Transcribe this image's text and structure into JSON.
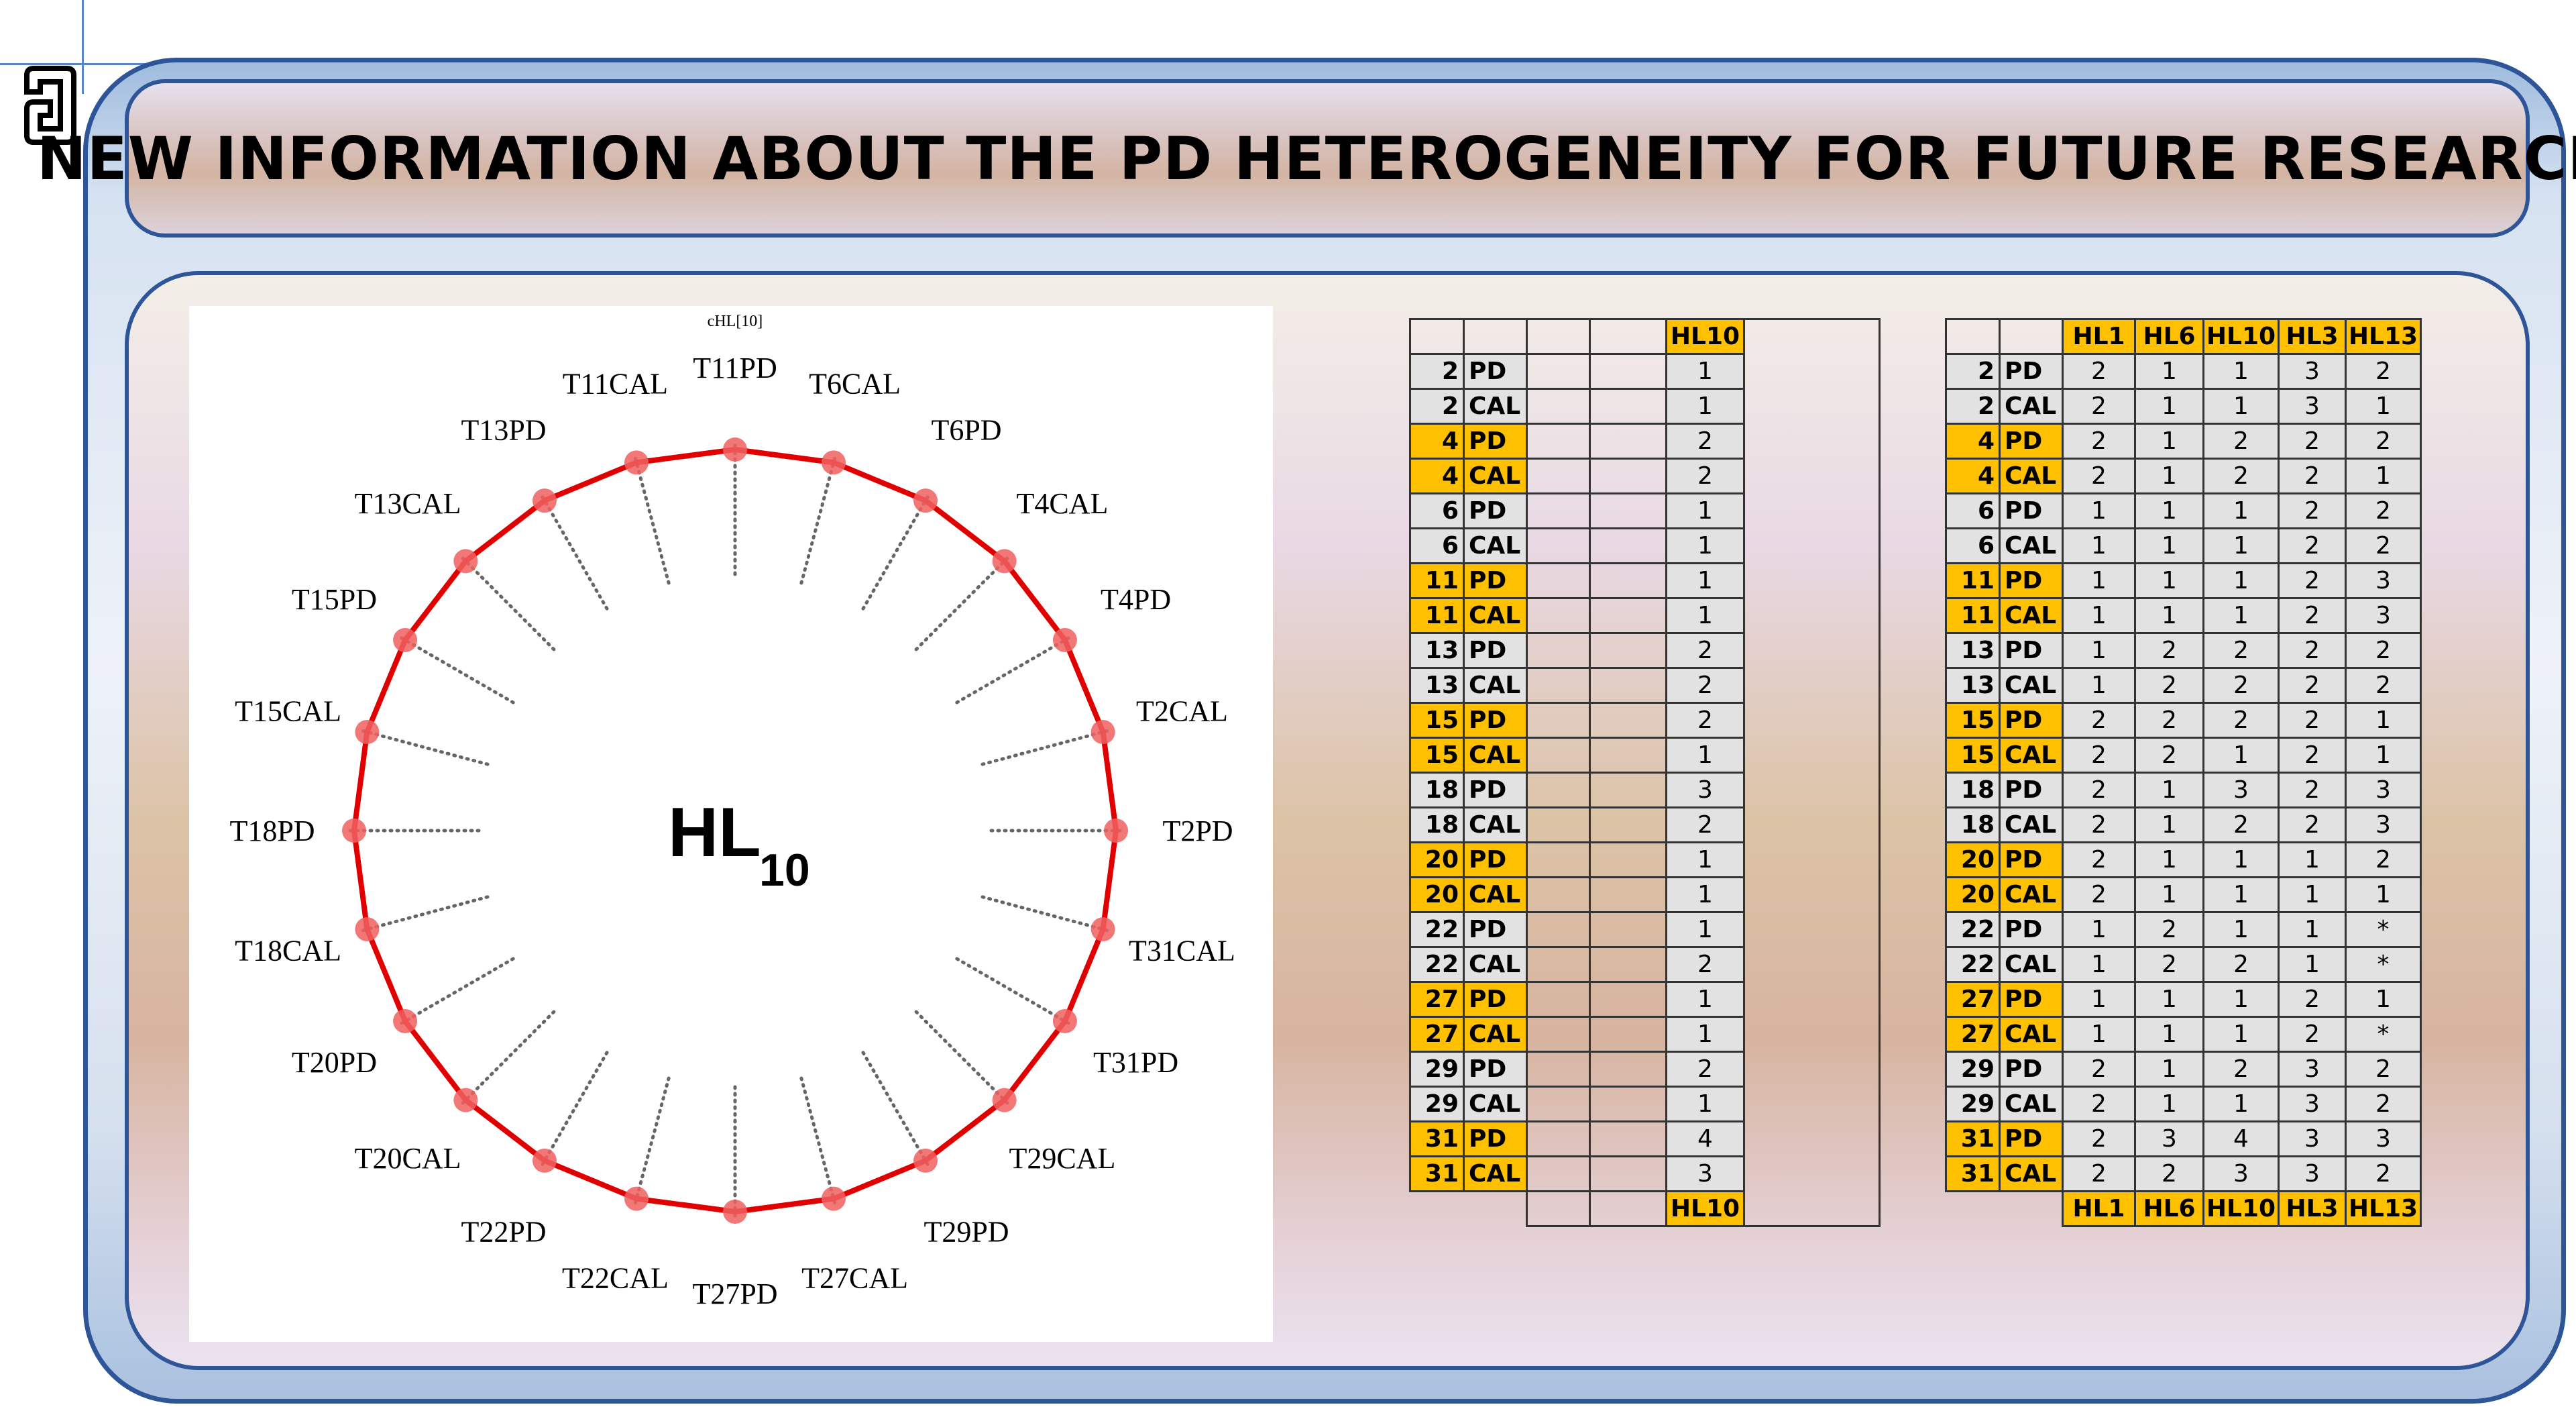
{
  "title": "NEW INFORMATION ABOUT THE PD HETEROGENEITY FOR FUTURE RESEARCH",
  "diagram": {
    "small_label": "cHL[10]",
    "center_label_main": "HL",
    "center_label_sub": "10",
    "line_color": "#e00000",
    "marker_color": "#f06060",
    "axes": [
      {
        "label": "T11PD",
        "value": 1
      },
      {
        "label": "T6CAL",
        "value": 1
      },
      {
        "label": "T6PD",
        "value": 1
      },
      {
        "label": "T4CAL",
        "value": 2
      },
      {
        "label": "T4PD",
        "value": 2
      },
      {
        "label": "T2CAL",
        "value": 1
      },
      {
        "label": "T2PD",
        "value": 1
      },
      {
        "label": "T31CAL",
        "value": 3
      },
      {
        "label": "T31PD",
        "value": 4
      },
      {
        "label": "T29CAL",
        "value": 1
      },
      {
        "label": "T29PD",
        "value": 2
      },
      {
        "label": "T27CAL",
        "value": 1
      },
      {
        "label": "T27PD",
        "value": 1
      },
      {
        "label": "T22CAL",
        "value": 2
      },
      {
        "label": "T22PD",
        "value": 1
      },
      {
        "label": "T20CAL",
        "value": 1
      },
      {
        "label": "T20PD",
        "value": 1
      },
      {
        "label": "T18CAL",
        "value": 2
      },
      {
        "label": "T18PD",
        "value": 3
      },
      {
        "label": "T15CAL",
        "value": 1
      },
      {
        "label": "T15PD",
        "value": 2
      },
      {
        "label": "T13CAL",
        "value": 2
      },
      {
        "label": "T13PD",
        "value": 2
      },
      {
        "label": "T11CAL",
        "value": 1
      }
    ]
  },
  "table1": {
    "header": "HL10",
    "footer": "HL10",
    "rows": [
      {
        "num": "2",
        "grp": "PD",
        "val": "1"
      },
      {
        "num": "2",
        "grp": "CAL",
        "val": "1"
      },
      {
        "num": "4",
        "grp": "PD",
        "val": "2"
      },
      {
        "num": "4",
        "grp": "CAL",
        "val": "2"
      },
      {
        "num": "6",
        "grp": "PD",
        "val": "1"
      },
      {
        "num": "6",
        "grp": "CAL",
        "val": "1"
      },
      {
        "num": "11",
        "grp": "PD",
        "val": "1"
      },
      {
        "num": "11",
        "grp": "CAL",
        "val": "1"
      },
      {
        "num": "13",
        "grp": "PD",
        "val": "2"
      },
      {
        "num": "13",
        "grp": "CAL",
        "val": "2"
      },
      {
        "num": "15",
        "grp": "PD",
        "val": "2"
      },
      {
        "num": "15",
        "grp": "CAL",
        "val": "1"
      },
      {
        "num": "18",
        "grp": "PD",
        "val": "3"
      },
      {
        "num": "18",
        "grp": "CAL",
        "val": "2"
      },
      {
        "num": "20",
        "grp": "PD",
        "val": "1"
      },
      {
        "num": "20",
        "grp": "CAL",
        "val": "1"
      },
      {
        "num": "22",
        "grp": "PD",
        "val": "1"
      },
      {
        "num": "22",
        "grp": "CAL",
        "val": "2"
      },
      {
        "num": "27",
        "grp": "PD",
        "val": "1"
      },
      {
        "num": "27",
        "grp": "CAL",
        "val": "1"
      },
      {
        "num": "29",
        "grp": "PD",
        "val": "2"
      },
      {
        "num": "29",
        "grp": "CAL",
        "val": "1"
      },
      {
        "num": "31",
        "grp": "PD",
        "val": "4"
      },
      {
        "num": "31",
        "grp": "CAL",
        "val": "3"
      }
    ]
  },
  "table2": {
    "headers": [
      "HL1",
      "HL6",
      "HL10",
      "HL3",
      "HL13"
    ],
    "footers": [
      "HL1",
      "HL6",
      "HL10",
      "HL3",
      "HL13"
    ],
    "rows": [
      {
        "num": "2",
        "grp": "PD",
        "vals": [
          "2",
          "1",
          "1",
          "3",
          "2"
        ]
      },
      {
        "num": "2",
        "grp": "CAL",
        "vals": [
          "2",
          "1",
          "1",
          "3",
          "1"
        ]
      },
      {
        "num": "4",
        "grp": "PD",
        "vals": [
          "2",
          "1",
          "2",
          "2",
          "2"
        ]
      },
      {
        "num": "4",
        "grp": "CAL",
        "vals": [
          "2",
          "1",
          "2",
          "2",
          "1"
        ]
      },
      {
        "num": "6",
        "grp": "PD",
        "vals": [
          "1",
          "1",
          "1",
          "2",
          "2"
        ]
      },
      {
        "num": "6",
        "grp": "CAL",
        "vals": [
          "1",
          "1",
          "1",
          "2",
          "2"
        ]
      },
      {
        "num": "11",
        "grp": "PD",
        "vals": [
          "1",
          "1",
          "1",
          "2",
          "3"
        ]
      },
      {
        "num": "11",
        "grp": "CAL",
        "vals": [
          "1",
          "1",
          "1",
          "2",
          "3"
        ]
      },
      {
        "num": "13",
        "grp": "PD",
        "vals": [
          "1",
          "2",
          "2",
          "2",
          "2"
        ]
      },
      {
        "num": "13",
        "grp": "CAL",
        "vals": [
          "1",
          "2",
          "2",
          "2",
          "2"
        ]
      },
      {
        "num": "15",
        "grp": "PD",
        "vals": [
          "2",
          "2",
          "2",
          "2",
          "1"
        ]
      },
      {
        "num": "15",
        "grp": "CAL",
        "vals": [
          "2",
          "2",
          "1",
          "2",
          "1"
        ]
      },
      {
        "num": "18",
        "grp": "PD",
        "vals": [
          "2",
          "1",
          "3",
          "2",
          "3"
        ]
      },
      {
        "num": "18",
        "grp": "CAL",
        "vals": [
          "2",
          "1",
          "2",
          "2",
          "3"
        ]
      },
      {
        "num": "20",
        "grp": "PD",
        "vals": [
          "2",
          "1",
          "1",
          "1",
          "2"
        ]
      },
      {
        "num": "20",
        "grp": "CAL",
        "vals": [
          "2",
          "1",
          "1",
          "1",
          "1"
        ]
      },
      {
        "num": "22",
        "grp": "PD",
        "vals": [
          "1",
          "2",
          "1",
          "1",
          "*"
        ]
      },
      {
        "num": "22",
        "grp": "CAL",
        "vals": [
          "1",
          "2",
          "2",
          "1",
          "*"
        ]
      },
      {
        "num": "27",
        "grp": "PD",
        "vals": [
          "1",
          "1",
          "1",
          "2",
          "1"
        ]
      },
      {
        "num": "27",
        "grp": "CAL",
        "vals": [
          "1",
          "1",
          "1",
          "2",
          "*"
        ]
      },
      {
        "num": "29",
        "grp": "PD",
        "vals": [
          "2",
          "1",
          "2",
          "3",
          "2"
        ]
      },
      {
        "num": "29",
        "grp": "CAL",
        "vals": [
          "2",
          "1",
          "1",
          "3",
          "2"
        ]
      },
      {
        "num": "31",
        "grp": "PD",
        "vals": [
          "2",
          "3",
          "4",
          "3",
          "3"
        ]
      },
      {
        "num": "31",
        "grp": "CAL",
        "vals": [
          "2",
          "2",
          "3",
          "3",
          "2"
        ]
      }
    ]
  }
}
